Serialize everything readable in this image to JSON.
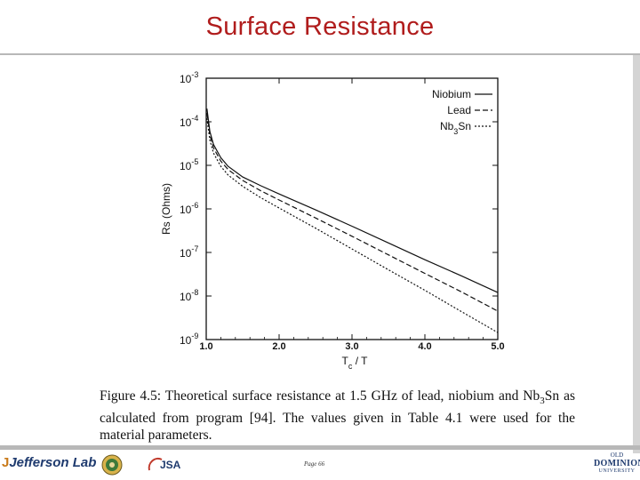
{
  "slide": {
    "title": "Surface Resistance",
    "page_label": "Page 66",
    "caption": "Figure 4.5: Theoretical surface resistance at 1.5 GHz of lead, niobium and Nb3Sn as calculated from program [94]. The values given in Table 4.1 were used for the material parameters.",
    "footer": {
      "jefferson_lab": "Jefferson Lab",
      "jsa": "JSA",
      "odu_line1": "OLD",
      "odu_line2": "DOMINION",
      "odu_line3": "UNIVERSITY"
    }
  },
  "chart_data": {
    "type": "line",
    "xlabel": "Tc / T",
    "ylabel": "Rs (Ohms)",
    "xlim": [
      1.0,
      5.0
    ],
    "ylim": [
      1e-09,
      0.001
    ],
    "y_scale": "log",
    "x_ticks": [
      "1.0",
      "2.0",
      "3.0",
      "4.0",
      "5.0"
    ],
    "y_ticks": [
      {
        "base": "10",
        "exp": "-3"
      },
      {
        "base": "10",
        "exp": "-4"
      },
      {
        "base": "10",
        "exp": "-5"
      },
      {
        "base": "10",
        "exp": "-6"
      },
      {
        "base": "10",
        "exp": "-7"
      },
      {
        "base": "10",
        "exp": "-8"
      },
      {
        "base": "10",
        "exp": "-9"
      }
    ],
    "legend_position": "top-right",
    "series": [
      {
        "name": "Niobium",
        "style": "solid",
        "x": [
          1.01,
          1.05,
          1.1,
          1.2,
          1.3,
          1.5,
          1.75,
          2.0,
          2.5,
          3.0,
          3.5,
          4.0,
          4.5,
          5.0
        ],
        "y": [
          0.0002,
          6e-05,
          3e-05,
          1.5e-05,
          9.5e-06,
          5.4e-06,
          3.4e-06,
          2.2e-06,
          9.5e-07,
          4e-07,
          1.65e-07,
          6.8e-08,
          2.9e-08,
          1.2e-08
        ]
      },
      {
        "name": "Lead",
        "style": "dashed",
        "x": [
          1.01,
          1.05,
          1.1,
          1.2,
          1.3,
          1.5,
          1.75,
          2.0,
          2.5,
          3.0,
          3.5,
          4.0,
          4.5,
          5.0
        ],
        "y": [
          0.00016,
          5e-05,
          2.5e-05,
          1.25e-05,
          8e-06,
          4.5e-06,
          2.6e-06,
          1.6e-06,
          6.2e-07,
          2.35e-07,
          8.8e-08,
          3.3e-08,
          1.25e-08,
          4.5e-09
        ]
      },
      {
        "name": "Nb3Sn",
        "name_base": "Nb",
        "name_sub": "3",
        "name_tail": "Sn",
        "style": "dotted",
        "x": [
          1.01,
          1.05,
          1.1,
          1.2,
          1.3,
          1.5,
          1.75,
          2.0,
          2.5,
          3.0,
          3.5,
          4.0,
          4.5,
          5.0
        ],
        "y": [
          0.00012,
          3.8e-05,
          1.9e-05,
          9.5e-06,
          6e-06,
          3.3e-06,
          1.8e-06,
          1.05e-06,
          3.6e-07,
          1.2e-07,
          4e-08,
          1.35e-08,
          4.4e-09,
          1.45e-09
        ]
      }
    ]
  },
  "colors": {
    "title": "#b01c1c",
    "rule": "#b8b8b8",
    "ink": "#111111"
  }
}
